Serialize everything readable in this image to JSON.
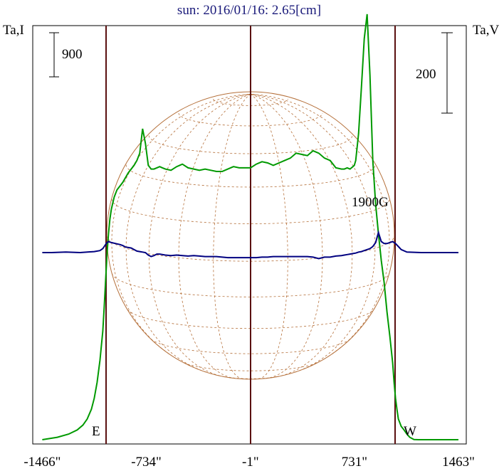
{
  "title": "sun: 2016/01/16: 2.65[cm]",
  "left_axis_label": "Ta,I",
  "right_axis_label": "Ta,V",
  "left_scale_label": "900",
  "right_scale_label": "200",
  "field_label": "1900G",
  "east_label": "E",
  "west_label": "W",
  "colors": {
    "title": "#1a1a7a",
    "intensity": "#009900",
    "polarization": "#000080",
    "limb": "#8b0000",
    "disk": "#b5703a"
  },
  "chart_data": {
    "type": "line",
    "x_ticks": [
      "-1466\"",
      "-734\"",
      "-1\"",
      "731\"",
      "1463\""
    ],
    "x_tick_values": [
      -1466,
      -734,
      -1,
      731,
      1463
    ],
    "xlim": [
      -1466,
      1463
    ],
    "limb_positions": [
      -1017,
      1017
    ],
    "series": [
      {
        "key": "intensity",
        "x": [
          -1466,
          -1360,
          -1280,
          -1220,
          -1180,
          -1150,
          -1120,
          -1100,
          -1080,
          -1060,
          -1040,
          -1030,
          -1020,
          -1010,
          -1000,
          -990,
          -980,
          -960,
          -940,
          -920,
          -900,
          -880,
          -860,
          -840,
          -820,
          -800,
          -780,
          -760,
          -740,
          -720,
          -700,
          -680,
          -660,
          -640,
          -620,
          -600,
          -560,
          -520,
          -480,
          -440,
          -400,
          -360,
          -320,
          -280,
          -240,
          -200,
          -160,
          -120,
          -80,
          -40,
          0,
          40,
          80,
          120,
          160,
          200,
          240,
          280,
          320,
          360,
          400,
          440,
          480,
          520,
          560,
          600,
          640,
          660,
          680,
          700,
          720,
          730,
          740,
          760,
          780,
          800,
          820,
          840,
          860,
          880,
          900,
          920,
          940,
          960,
          980,
          1000,
          1010,
          1020,
          1030,
          1040,
          1060,
          1080,
          1100,
          1120,
          1150,
          1180,
          1220,
          1280,
          1360,
          1463
        ],
        "y": [
          50,
          150,
          280,
          450,
          650,
          900,
          1300,
          1750,
          2400,
          3300,
          4500,
          5500,
          6600,
          7700,
          8500,
          9100,
          9500,
          10000,
          10300,
          10450,
          10600,
          10800,
          11000,
          11150,
          11300,
          11500,
          11800,
          12800,
          12200,
          11300,
          11150,
          11150,
          11200,
          11250,
          11200,
          11150,
          11100,
          11250,
          11350,
          11200,
          11150,
          11100,
          11150,
          11100,
          11050,
          11050,
          11150,
          11250,
          11200,
          11200,
          11200,
          11350,
          11450,
          11400,
          11300,
          11400,
          11500,
          11600,
          11800,
          11750,
          11700,
          11900,
          11800,
          11600,
          11500,
          11200,
          11150,
          11150,
          11200,
          11150,
          11250,
          11300,
          11500,
          12600,
          14500,
          16500,
          17500,
          15000,
          11500,
          9700,
          8500,
          7400,
          6500,
          5300,
          4300,
          3200,
          2400,
          1750,
          1300,
          900,
          600,
          450,
          280,
          150,
          60,
          50,
          50,
          50,
          50,
          50
        ],
        "unit_per_scale_bar": 900
      },
      {
        "key": "polarization",
        "x": [
          -1466,
          -1400,
          -1300,
          -1200,
          -1100,
          -1060,
          -1040,
          -1025,
          -1010,
          -1000,
          -980,
          -950,
          -920,
          -900,
          -880,
          -860,
          -840,
          -820,
          -800,
          -780,
          -760,
          -740,
          -720,
          -700,
          -680,
          -660,
          -640,
          -600,
          -560,
          -520,
          -480,
          -440,
          -400,
          -360,
          -320,
          -280,
          -240,
          -200,
          -160,
          -120,
          -80,
          -40,
          0,
          40,
          80,
          120,
          160,
          200,
          240,
          280,
          320,
          360,
          400,
          440,
          480,
          520,
          560,
          600,
          640,
          660,
          680,
          700,
          720,
          740,
          760,
          780,
          800,
          820,
          840,
          860,
          880,
          900,
          920,
          940,
          960,
          980,
          990,
          1000,
          1010,
          1020,
          1040,
          1060,
          1100,
          1200,
          1300,
          1463
        ],
        "y": [
          0,
          0,
          5,
          0,
          10,
          20,
          40,
          70,
          100,
          110,
          100,
          90,
          80,
          70,
          55,
          50,
          45,
          30,
          15,
          10,
          5,
          0,
          -25,
          -40,
          -30,
          -15,
          -15,
          -25,
          -30,
          -25,
          -30,
          -35,
          -30,
          -35,
          -40,
          -40,
          -40,
          -45,
          -50,
          -50,
          -50,
          -50,
          -50,
          -50,
          -45,
          -45,
          -40,
          -40,
          -40,
          -40,
          -40,
          -40,
          -40,
          -45,
          -60,
          -45,
          -45,
          -35,
          -30,
          -25,
          -20,
          -15,
          -10,
          -5,
          5,
          10,
          20,
          30,
          40,
          60,
          100,
          200,
          110,
          90,
          90,
          100,
          105,
          110,
          100,
          90,
          60,
          30,
          5,
          0,
          0,
          0
        ],
        "unit_per_scale_bar": 200
      }
    ],
    "grid": false,
    "legend": "none"
  }
}
